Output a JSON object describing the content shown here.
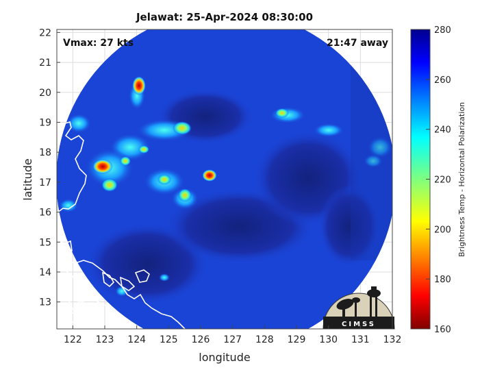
{
  "title": "Jelawat: 25-Apr-2024 08:30:00",
  "annotations": {
    "vmax": "Vmax: 27 kts",
    "time_away": "21:47 away"
  },
  "axes": {
    "xlabel": "longitude",
    "ylabel": "latitude",
    "xlim": [
      121.5,
      132
    ],
    "ylim": [
      12.1,
      22.1
    ],
    "xticks": [
      "122",
      "123",
      "124",
      "125",
      "126",
      "127",
      "128",
      "129",
      "130",
      "131",
      "132"
    ],
    "yticks": [
      "13",
      "14",
      "15",
      "16",
      "17",
      "18",
      "19",
      "20",
      "21",
      "22"
    ]
  },
  "colorbar": {
    "label": "Brightness Temp - Horizontal Polarization",
    "min": 160,
    "max": 280,
    "ticks": [
      "160",
      "180",
      "200",
      "220",
      "240",
      "260",
      "280"
    ],
    "colormap": "jet"
  },
  "logo": {
    "text": "CIMSS"
  },
  "colors": {
    "background_blue": "#1a44d6",
    "coast": "#ffffff",
    "colorbar_top": "#00008f",
    "colorbar_bottom": "#800000"
  }
}
